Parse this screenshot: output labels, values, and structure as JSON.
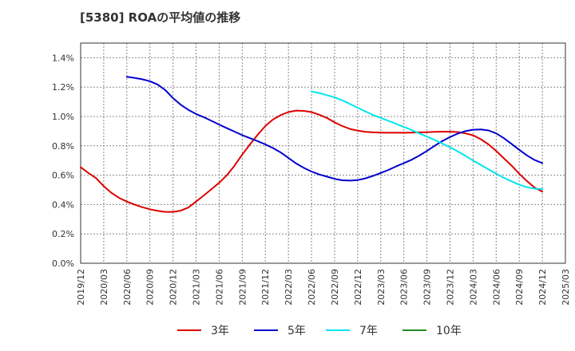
{
  "chart_data": {
    "type": "line",
    "title": "[5380]  ROAの平均値の推移",
    "x_ticks": [
      "2019/12",
      "2020/03",
      "2020/06",
      "2020/09",
      "2020/12",
      "2021/03",
      "2021/06",
      "2021/09",
      "2021/12",
      "2022/03",
      "2022/06",
      "2022/09",
      "2022/12",
      "2023/03",
      "2023/06",
      "2023/09",
      "2023/12",
      "2024/03",
      "2024/06",
      "2024/09",
      "2024/12",
      "2025/03"
    ],
    "y_ticks": [
      "0.0%",
      "0.2%",
      "0.4%",
      "0.6%",
      "0.8%",
      "1.0%",
      "1.2%",
      "1.4%"
    ],
    "ylim": [
      0,
      1.5
    ],
    "grid": true,
    "legend_position": "bottom",
    "series": [
      {
        "name": "3年",
        "color": "#dd0000",
        "points": [
          [
            "2019/12",
            0.655
          ],
          [
            "2020/01",
            0.615
          ],
          [
            "2020/02",
            0.58
          ],
          [
            "2020/03",
            0.525
          ],
          [
            "2020/04",
            0.48
          ],
          [
            "2020/05",
            0.445
          ],
          [
            "2020/06",
            0.42
          ],
          [
            "2020/07",
            0.4
          ],
          [
            "2020/08",
            0.382
          ],
          [
            "2020/09",
            0.368
          ],
          [
            "2020/10",
            0.357
          ],
          [
            "2020/11",
            0.35
          ],
          [
            "2020/12",
            0.35
          ],
          [
            "2021/01",
            0.358
          ],
          [
            "2021/02",
            0.38
          ],
          [
            "2021/03",
            0.42
          ],
          [
            "2021/04",
            0.462
          ],
          [
            "2021/05",
            0.505
          ],
          [
            "2021/06",
            0.548
          ],
          [
            "2021/07",
            0.6
          ],
          [
            "2021/08",
            0.665
          ],
          [
            "2021/09",
            0.74
          ],
          [
            "2021/10",
            0.81
          ],
          [
            "2021/11",
            0.875
          ],
          [
            "2021/12",
            0.935
          ],
          [
            "2022/01",
            0.98
          ],
          [
            "2022/02",
            1.01
          ],
          [
            "2022/03",
            1.03
          ],
          [
            "2022/04",
            1.04
          ],
          [
            "2022/05",
            1.038
          ],
          [
            "2022/06",
            1.03
          ],
          [
            "2022/07",
            1.012
          ],
          [
            "2022/08",
            0.99
          ],
          [
            "2022/09",
            0.96
          ],
          [
            "2022/10",
            0.935
          ],
          [
            "2022/11",
            0.915
          ],
          [
            "2022/12",
            0.903
          ],
          [
            "2023/01",
            0.895
          ],
          [
            "2023/02",
            0.892
          ],
          [
            "2023/03",
            0.89
          ],
          [
            "2023/04",
            0.889
          ],
          [
            "2023/05",
            0.889
          ],
          [
            "2023/06",
            0.889
          ],
          [
            "2023/07",
            0.89
          ],
          [
            "2023/08",
            0.892
          ],
          [
            "2023/09",
            0.893
          ],
          [
            "2023/10",
            0.895
          ],
          [
            "2023/11",
            0.896
          ],
          [
            "2023/12",
            0.896
          ],
          [
            "2024/01",
            0.894
          ],
          [
            "2024/02",
            0.885
          ],
          [
            "2024/03",
            0.872
          ],
          [
            "2024/04",
            0.845
          ],
          [
            "2024/05",
            0.81
          ],
          [
            "2024/06",
            0.765
          ],
          [
            "2024/07",
            0.715
          ],
          [
            "2024/08",
            0.665
          ],
          [
            "2024/09",
            0.61
          ],
          [
            "2024/10",
            0.56
          ],
          [
            "2024/11",
            0.515
          ],
          [
            "2024/12",
            0.488
          ]
        ]
      },
      {
        "name": "5年",
        "color": "#0000cc",
        "points": [
          [
            "2020/06",
            1.27
          ],
          [
            "2020/07",
            1.263
          ],
          [
            "2020/08",
            1.253
          ],
          [
            "2020/09",
            1.24
          ],
          [
            "2020/10",
            1.218
          ],
          [
            "2020/11",
            1.18
          ],
          [
            "2020/12",
            1.125
          ],
          [
            "2021/01",
            1.08
          ],
          [
            "2021/02",
            1.045
          ],
          [
            "2021/03",
            1.017
          ],
          [
            "2021/04",
            0.995
          ],
          [
            "2021/05",
            0.97
          ],
          [
            "2021/06",
            0.945
          ],
          [
            "2021/07",
            0.92
          ],
          [
            "2021/08",
            0.897
          ],
          [
            "2021/09",
            0.873
          ],
          [
            "2021/10",
            0.852
          ],
          [
            "2021/11",
            0.832
          ],
          [
            "2021/12",
            0.81
          ],
          [
            "2022/01",
            0.785
          ],
          [
            "2022/02",
            0.755
          ],
          [
            "2022/03",
            0.718
          ],
          [
            "2022/04",
            0.68
          ],
          [
            "2022/05",
            0.65
          ],
          [
            "2022/06",
            0.625
          ],
          [
            "2022/07",
            0.605
          ],
          [
            "2022/08",
            0.59
          ],
          [
            "2022/09",
            0.575
          ],
          [
            "2022/10",
            0.565
          ],
          [
            "2022/11",
            0.563
          ],
          [
            "2022/12",
            0.567
          ],
          [
            "2023/01",
            0.578
          ],
          [
            "2023/02",
            0.595
          ],
          [
            "2023/03",
            0.615
          ],
          [
            "2023/04",
            0.636
          ],
          [
            "2023/05",
            0.66
          ],
          [
            "2023/06",
            0.682
          ],
          [
            "2023/07",
            0.705
          ],
          [
            "2023/08",
            0.733
          ],
          [
            "2023/09",
            0.765
          ],
          [
            "2023/10",
            0.8
          ],
          [
            "2023/11",
            0.832
          ],
          [
            "2023/12",
            0.86
          ],
          [
            "2024/01",
            0.883
          ],
          [
            "2024/02",
            0.9
          ],
          [
            "2024/03",
            0.91
          ],
          [
            "2024/04",
            0.912
          ],
          [
            "2024/05",
            0.905
          ],
          [
            "2024/06",
            0.885
          ],
          [
            "2024/07",
            0.852
          ],
          [
            "2024/08",
            0.813
          ],
          [
            "2024/09",
            0.773
          ],
          [
            "2024/10",
            0.735
          ],
          [
            "2024/11",
            0.703
          ],
          [
            "2024/12",
            0.682
          ]
        ]
      },
      {
        "name": "7年",
        "color": "#00e5ee",
        "points": [
          [
            "2022/06",
            1.17
          ],
          [
            "2022/07",
            1.16
          ],
          [
            "2022/08",
            1.145
          ],
          [
            "2022/09",
            1.13
          ],
          [
            "2022/10",
            1.11
          ],
          [
            "2022/11",
            1.085
          ],
          [
            "2022/12",
            1.06
          ],
          [
            "2023/01",
            1.035
          ],
          [
            "2023/02",
            1.01
          ],
          [
            "2023/03",
            0.99
          ],
          [
            "2023/04",
            0.97
          ],
          [
            "2023/05",
            0.95
          ],
          [
            "2023/06",
            0.928
          ],
          [
            "2023/07",
            0.908
          ],
          [
            "2023/08",
            0.885
          ],
          [
            "2023/09",
            0.863
          ],
          [
            "2023/10",
            0.84
          ],
          [
            "2023/11",
            0.815
          ],
          [
            "2023/12",
            0.79
          ],
          [
            "2024/01",
            0.762
          ],
          [
            "2024/02",
            0.732
          ],
          [
            "2024/03",
            0.7
          ],
          [
            "2024/04",
            0.67
          ],
          [
            "2024/05",
            0.64
          ],
          [
            "2024/06",
            0.61
          ],
          [
            "2024/07",
            0.582
          ],
          [
            "2024/08",
            0.558
          ],
          [
            "2024/09",
            0.535
          ],
          [
            "2024/10",
            0.518
          ],
          [
            "2024/11",
            0.508
          ],
          [
            "2024/12",
            0.505
          ]
        ]
      },
      {
        "name": "10年",
        "color": "#228b22",
        "points": []
      }
    ]
  }
}
